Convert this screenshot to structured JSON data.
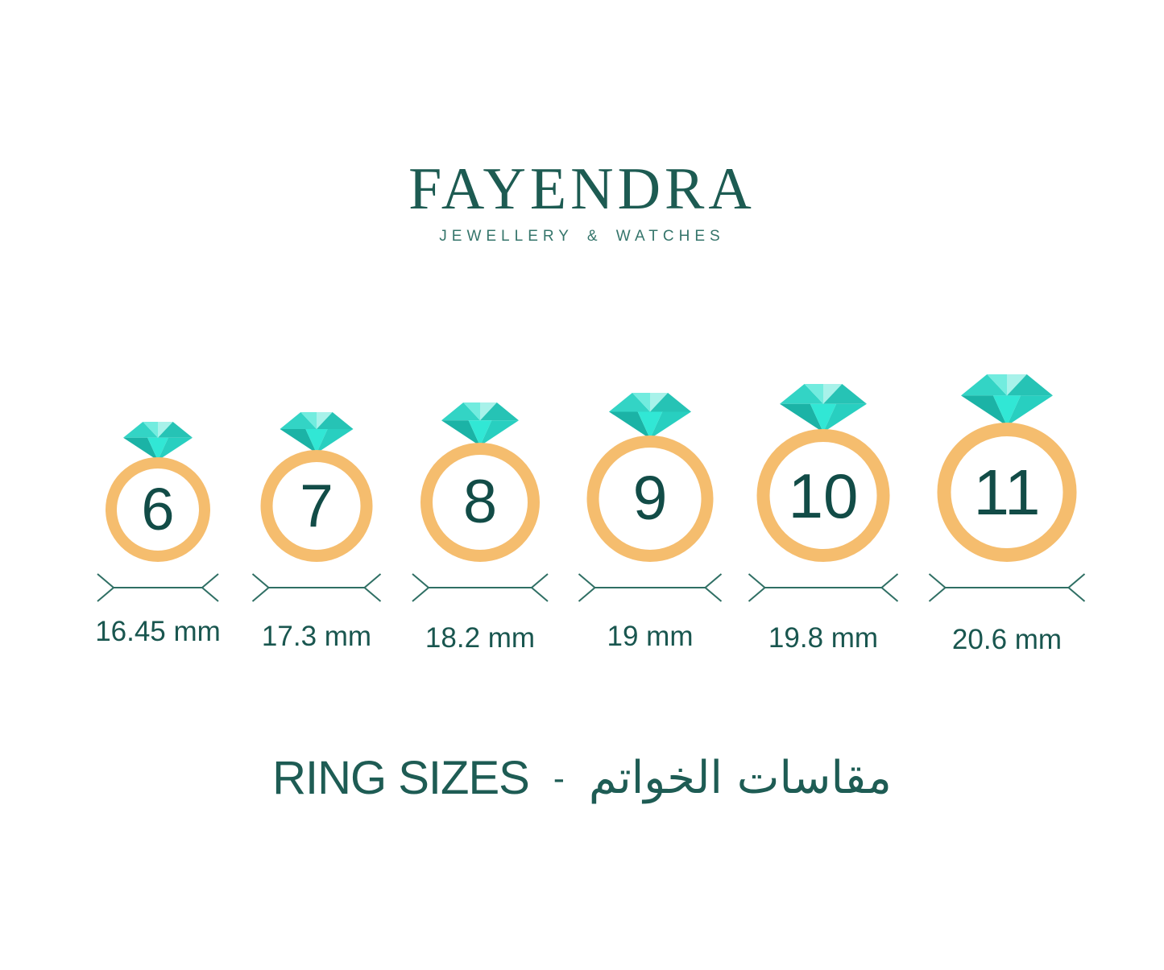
{
  "brand": {
    "name": "FAYENDRA",
    "tagline": "JEWELLERY & WATCHES"
  },
  "rings": [
    {
      "size": "6",
      "diameter": "16.45 mm"
    },
    {
      "size": "7",
      "diameter": "17.3 mm"
    },
    {
      "size": "8",
      "diameter": "18.2 mm"
    },
    {
      "size": "9",
      "diameter": "19 mm"
    },
    {
      "size": "10",
      "diameter": "19.8 mm"
    },
    {
      "size": "11",
      "diameter": "20.6 mm"
    }
  ],
  "footer": {
    "title_en": "RING SIZES",
    "separator": "-",
    "title_ar": "مقاسات الخواتم"
  },
  "colors": {
    "logo_teal": "#1d5b52",
    "tagline_teal": "#35756b",
    "title_teal": "#1e5c54",
    "label_teal": "#19564f",
    "number_teal": "#124c47",
    "band_gold": "#f5bd6e",
    "dimension_line": "#2f6f64",
    "diamond_medium": "#33d4c5",
    "diamond_center_light": "#72ecdf",
    "diamond_pale": "#a8f2ea",
    "diamond_medium_dark": "#26c3b5",
    "diamond_dark": "#1bb3a6",
    "diamond_bright": "#31e7d5",
    "diamond_right_pav": "#28cfc0"
  }
}
